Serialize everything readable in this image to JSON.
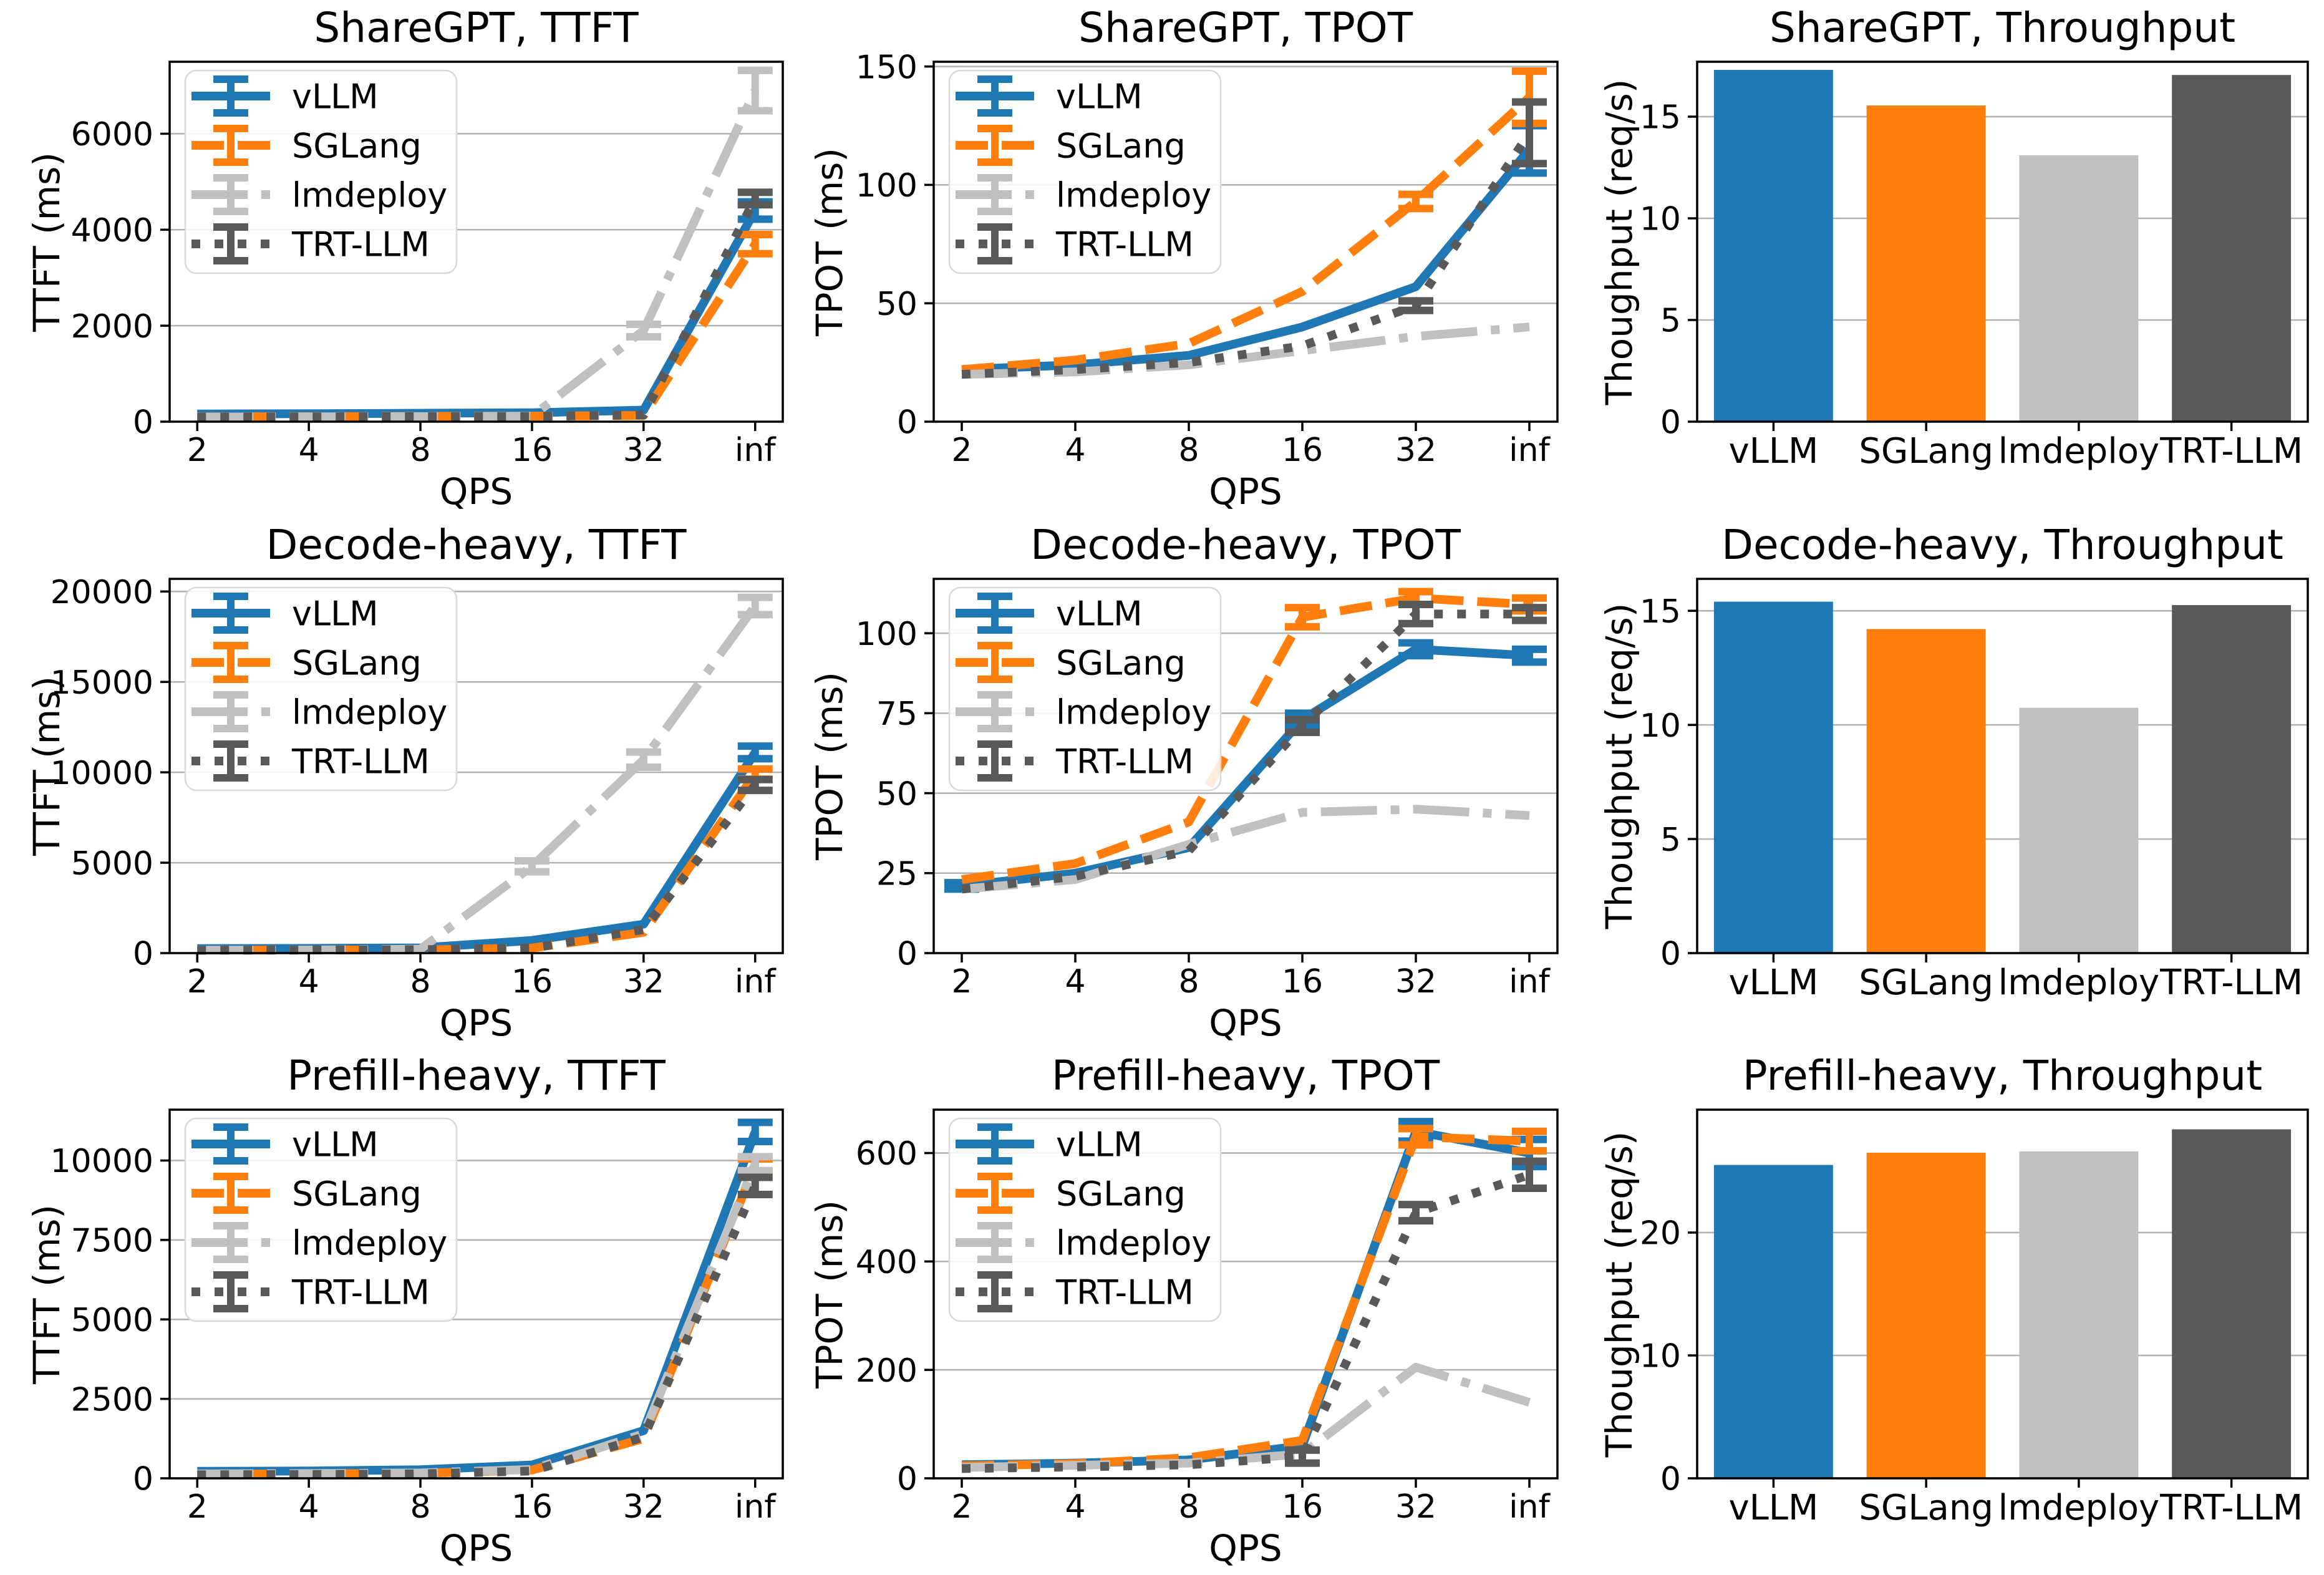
{
  "figure": {
    "background": "#ffffff",
    "grid_color": "#b2b2b2",
    "spine_color": "#000000"
  },
  "chart_data": [
    {
      "type": "line",
      "title": "ShareGPT, TTFT",
      "xlabel": "QPS",
      "ylabel": "TTFT (ms)",
      "x_ticklabels": [
        "2",
        "4",
        "8",
        "16",
        "32",
        "inf"
      ],
      "yticks": [
        0,
        2000,
        4000,
        6000
      ],
      "ylim": [
        0,
        7500
      ],
      "grid": true,
      "legend_position": "upper left",
      "series": [
        {
          "name": "vLLM",
          "color": "#1f77b4",
          "dash": "solid",
          "values": [
            160,
            165,
            175,
            185,
            240,
            4400
          ],
          "err": [
            0,
            0,
            0,
            0,
            0,
            180
          ]
        },
        {
          "name": "SGLang",
          "color": "#ff7f0e",
          "dash": "dashed",
          "values": [
            100,
            105,
            110,
            115,
            130,
            3700
          ],
          "err": [
            0,
            0,
            0,
            0,
            0,
            200
          ]
        },
        {
          "name": "lmdeploy",
          "color": "#c0c0c0",
          "dash": "dashdot",
          "values": [
            95,
            100,
            105,
            115,
            1900,
            6900
          ],
          "err": [
            0,
            0,
            0,
            0,
            130,
            420
          ]
        },
        {
          "name": "TRT-LLM",
          "color": "#595959",
          "dash": "dotted",
          "values": [
            95,
            100,
            105,
            110,
            140,
            4650
          ],
          "err": [
            0,
            0,
            0,
            0,
            0,
            130
          ]
        }
      ]
    },
    {
      "type": "line",
      "title": "ShareGPT, TPOT",
      "xlabel": "QPS",
      "ylabel": "TPOT (ms)",
      "x_ticklabels": [
        "2",
        "4",
        "8",
        "16",
        "32",
        "inf"
      ],
      "yticks": [
        0,
        50,
        100,
        150
      ],
      "ylim": [
        0,
        152
      ],
      "grid": true,
      "legend_position": "upper left",
      "series": [
        {
          "name": "vLLM",
          "color": "#1f77b4",
          "dash": "solid",
          "values": [
            22,
            24,
            28,
            40,
            57,
            115
          ],
          "err": [
            0,
            0,
            0,
            0,
            0,
            10
          ]
        },
        {
          "name": "SGLang",
          "color": "#ff7f0e",
          "dash": "dashed",
          "values": [
            22,
            26,
            33,
            55,
            93,
            137
          ],
          "err": [
            0,
            0,
            0,
            0,
            3,
            11
          ]
        },
        {
          "name": "lmdeploy",
          "color": "#c0c0c0",
          "dash": "dashdot",
          "values": [
            20,
            21,
            24,
            30,
            36,
            40
          ],
          "err": [
            0,
            0,
            0,
            0,
            0,
            0
          ]
        },
        {
          "name": "TRT-LLM",
          "color": "#595959",
          "dash": "dotted",
          "values": [
            20,
            22,
            25,
            32,
            49,
            122
          ],
          "err": [
            0,
            0,
            0,
            0,
            2,
            13
          ]
        }
      ]
    },
    {
      "type": "bar",
      "title": "ShareGPT, Throughput",
      "xlabel": "",
      "ylabel": "Thoughput (req/s)",
      "categories": [
        "vLLM",
        "SGLang",
        "lmdeploy",
        "TRT-LLM"
      ],
      "bar_colors": [
        "#1f77b4",
        "#ff7f0e",
        "#c0c0c0",
        "#595959"
      ],
      "values": [
        17.3,
        15.55,
        13.1,
        17.05
      ],
      "yticks": [
        0,
        5,
        10,
        15
      ],
      "ylim": [
        0,
        17.7
      ],
      "grid": true
    },
    {
      "type": "line",
      "title": "Decode-heavy, TTFT",
      "xlabel": "QPS",
      "ylabel": "TTFT (ms)",
      "x_ticklabels": [
        "2",
        "4",
        "8",
        "16",
        "32",
        "inf"
      ],
      "yticks": [
        0,
        5000,
        10000,
        15000,
        20000
      ],
      "ylim": [
        0,
        20700
      ],
      "grid": true,
      "legend_position": "upper left",
      "series": [
        {
          "name": "vLLM",
          "color": "#1f77b4",
          "dash": "solid",
          "values": [
            250,
            260,
            290,
            700,
            1600,
            11100
          ],
          "err": [
            0,
            0,
            0,
            0,
            0,
            350
          ]
        },
        {
          "name": "SGLang",
          "color": "#ff7f0e",
          "dash": "dashed",
          "values": [
            160,
            170,
            180,
            280,
            1150,
            9900
          ],
          "err": [
            0,
            0,
            0,
            0,
            0,
            280
          ]
        },
        {
          "name": "lmdeploy",
          "color": "#c0c0c0",
          "dash": "dashdot",
          "values": [
            160,
            170,
            220,
            4800,
            10700,
            19200
          ],
          "err": [
            0,
            0,
            0,
            300,
            420,
            480
          ]
        },
        {
          "name": "TRT-LLM",
          "color": "#595959",
          "dash": "dotted",
          "values": [
            160,
            170,
            190,
            280,
            1300,
            9300
          ],
          "err": [
            0,
            0,
            0,
            0,
            0,
            300
          ]
        }
      ]
    },
    {
      "type": "line",
      "title": "Decode-heavy, TPOT",
      "xlabel": "QPS",
      "ylabel": "TPOT (ms)",
      "x_ticklabels": [
        "2",
        "4",
        "8",
        "16",
        "32",
        "inf"
      ],
      "yticks": [
        0,
        25,
        50,
        75,
        100
      ],
      "ylim": [
        0,
        117
      ],
      "grid": true,
      "legend_position": "upper left",
      "series": [
        {
          "name": "vLLM",
          "color": "#1f77b4",
          "dash": "solid",
          "values": [
            21,
            25,
            33,
            73,
            95,
            93
          ],
          "err": [
            1,
            0,
            0,
            2,
            2,
            2
          ]
        },
        {
          "name": "SGLang",
          "color": "#ff7f0e",
          "dash": "dashed",
          "values": [
            23,
            28,
            41,
            105,
            111,
            109
          ],
          "err": [
            0,
            0,
            0,
            3,
            2,
            2
          ]
        },
        {
          "name": "lmdeploy",
          "color": "#c0c0c0",
          "dash": "dashdot",
          "values": [
            20,
            23,
            34,
            44,
            45,
            43
          ],
          "err": [
            0,
            0,
            0,
            0,
            0,
            0
          ]
        },
        {
          "name": "TRT-LLM",
          "color": "#595959",
          "dash": "dotted",
          "values": [
            20,
            24,
            32,
            71,
            106,
            106
          ],
          "err": [
            0,
            0,
            0,
            2,
            3,
            2
          ]
        }
      ]
    },
    {
      "type": "bar",
      "title": "Decode-heavy, Throughput",
      "xlabel": "",
      "ylabel": "Thoughput (req/s)",
      "categories": [
        "vLLM",
        "SGLang",
        "lmdeploy",
        "TRT-LLM"
      ],
      "bar_colors": [
        "#1f77b4",
        "#ff7f0e",
        "#c0c0c0",
        "#595959"
      ],
      "values": [
        15.4,
        14.2,
        10.75,
        15.25
      ],
      "yticks": [
        0,
        5,
        10,
        15
      ],
      "ylim": [
        0,
        16.4
      ],
      "grid": true
    },
    {
      "type": "line",
      "title": "Prefill-heavy, TTFT",
      "xlabel": "QPS",
      "ylabel": "TTFT (ms)",
      "x_ticklabels": [
        "2",
        "4",
        "8",
        "16",
        "32",
        "inf"
      ],
      "yticks": [
        0,
        2500,
        5000,
        7500,
        10000
      ],
      "ylim": [
        0,
        11600
      ],
      "grid": true,
      "legend_position": "upper left",
      "series": [
        {
          "name": "vLLM",
          "color": "#1f77b4",
          "dash": "solid",
          "values": [
            220,
            230,
            270,
            420,
            1500,
            10900
          ],
          "err": [
            0,
            0,
            0,
            0,
            0,
            300
          ]
        },
        {
          "name": "SGLang",
          "color": "#ff7f0e",
          "dash": "dashed",
          "values": [
            130,
            140,
            160,
            260,
            1250,
            9850
          ],
          "err": [
            0,
            0,
            0,
            0,
            0,
            200
          ]
        },
        {
          "name": "lmdeploy",
          "color": "#c0c0c0",
          "dash": "dashdot",
          "values": [
            140,
            150,
            170,
            280,
            1400,
            9900
          ],
          "err": [
            0,
            0,
            0,
            0,
            0,
            220
          ]
        },
        {
          "name": "TRT-LLM",
          "color": "#595959",
          "dash": "dotted",
          "values": [
            110,
            120,
            140,
            230,
            1300,
            9200
          ],
          "err": [
            0,
            0,
            0,
            0,
            0,
            270
          ]
        }
      ]
    },
    {
      "type": "line",
      "title": "Prefill-heavy, TPOT",
      "xlabel": "QPS",
      "ylabel": "TPOT (ms)",
      "x_ticklabels": [
        "2",
        "4",
        "8",
        "16",
        "32",
        "inf"
      ],
      "yticks": [
        0,
        200,
        400,
        600
      ],
      "ylim": [
        0,
        680
      ],
      "grid": true,
      "legend_position": "upper left",
      "series": [
        {
          "name": "vLLM",
          "color": "#1f77b4",
          "dash": "solid",
          "values": [
            25,
            28,
            34,
            60,
            640,
            600
          ],
          "err": [
            0,
            0,
            0,
            0,
            18,
            25
          ]
        },
        {
          "name": "SGLang",
          "color": "#ff7f0e",
          "dash": "dashed",
          "values": [
            23,
            27,
            38,
            70,
            630,
            622
          ],
          "err": [
            0,
            0,
            0,
            0,
            15,
            18
          ]
        },
        {
          "name": "lmdeploy",
          "color": "#c0c0c0",
          "dash": "dashdot",
          "values": [
            20,
            24,
            28,
            45,
            205,
            140
          ],
          "err": [
            0,
            0,
            0,
            0,
            0,
            0
          ]
        },
        {
          "name": "TRT-LLM",
          "color": "#595959",
          "dash": "dotted",
          "values": [
            18,
            21,
            25,
            40,
            490,
            560
          ],
          "err": [
            0,
            0,
            0,
            12,
            15,
            25
          ]
        }
      ]
    },
    {
      "type": "bar",
      "title": "Prefill-heavy, Throughput",
      "xlabel": "",
      "ylabel": "Thoughput (req/s)",
      "categories": [
        "vLLM",
        "SGLang",
        "lmdeploy",
        "TRT-LLM"
      ],
      "bar_colors": [
        "#1f77b4",
        "#ff7f0e",
        "#c0c0c0",
        "#595959"
      ],
      "values": [
        25.5,
        26.5,
        26.6,
        28.4
      ],
      "yticks": [
        0,
        10,
        20
      ],
      "ylim": [
        0,
        30
      ],
      "grid": true
    }
  ]
}
